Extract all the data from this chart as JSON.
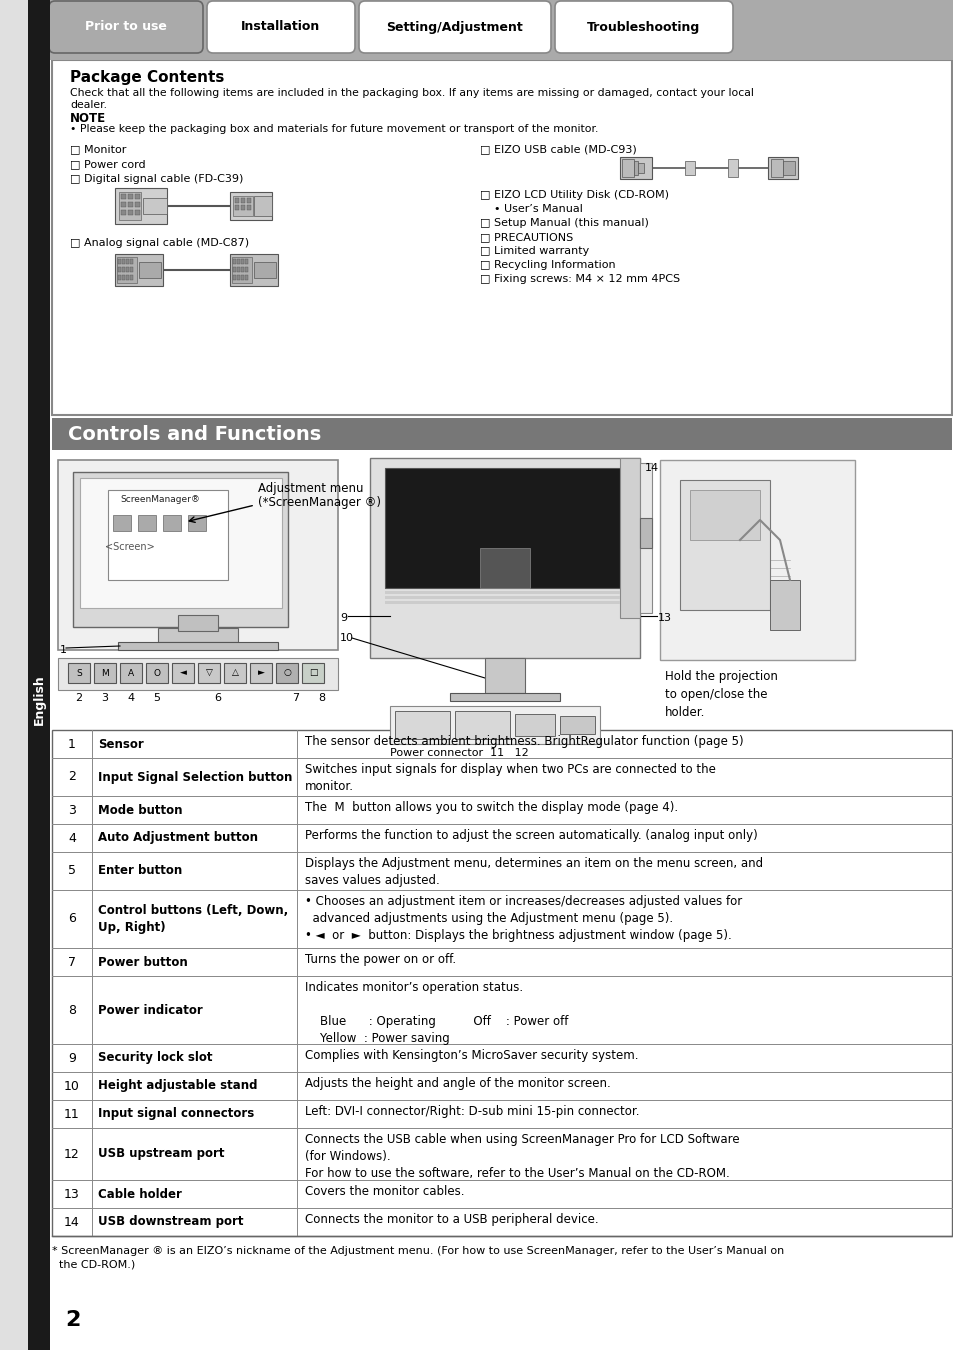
{
  "tabs": [
    "Prior to use",
    "Installation",
    "Setting/Adjustment",
    "Troubleshooting"
  ],
  "package_title": "Package Contents",
  "controls_title": "Controls and Functions",
  "table_rows": [
    {
      "num": "1",
      "name": "Sensor",
      "desc": "The sensor detects ambient brightness. BrightRegulator function (page 5)"
    },
    {
      "num": "2",
      "name": "Input Signal Selection button",
      "desc": "Switches input signals for display when two PCs are connected to the\nmonitor."
    },
    {
      "num": "3",
      "name": "Mode button",
      "desc": "The  M  button allows you to switch the display mode (page 4)."
    },
    {
      "num": "4",
      "name": "Auto Adjustment button",
      "desc": "Performs the function to adjust the screen automatically. (analog input only)"
    },
    {
      "num": "5",
      "name": "Enter button",
      "desc": "Displays the Adjustment menu, determines an item on the menu screen, and\nsaves values adjusted."
    },
    {
      "num": "6",
      "name": "Control buttons (Left, Down,\nUp, Right)",
      "desc": "• Chooses an adjustment item or increases/decreases adjusted values for\n  advanced adjustments using the Adjustment menu (page 5).\n• ◄  or  ►  button: Displays the brightness adjustment window (page 5)."
    },
    {
      "num": "7",
      "name": "Power button",
      "desc": "Turns the power on or off."
    },
    {
      "num": "8",
      "name": "Power indicator",
      "desc": "Indicates monitor’s operation status.\n\n    Blue      : Operating          Off    : Power off\n    Yellow  : Power saving"
    },
    {
      "num": "9",
      "name": "Security lock slot",
      "desc": "Complies with Kensington’s MicroSaver security system."
    },
    {
      "num": "10",
      "name": "Height adjustable stand",
      "desc": "Adjusts the height and angle of the monitor screen."
    },
    {
      "num": "11",
      "name": "Input signal connectors",
      "desc": "Left: DVI-I connector/Right: D-sub mini 15-pin connector."
    },
    {
      "num": "12",
      "name": "USB upstream port",
      "desc": "Connects the USB cable when using ScreenManager Pro for LCD Software\n(for Windows).\nFor how to use the software, refer to the User’s Manual on the CD-ROM."
    },
    {
      "num": "13",
      "name": "Cable holder",
      "desc": "Covers the monitor cables."
    },
    {
      "num": "14",
      "name": "USB downstream port",
      "desc": "Connects the monitor to a USB peripheral device."
    }
  ],
  "footnote": "* ScreenManager ® is an EIZO’s nickname of the Adjustment menu. (For how to use ScreenManager, refer to the User’s Manual on\n  the CD-ROM.)",
  "page_number": "2"
}
